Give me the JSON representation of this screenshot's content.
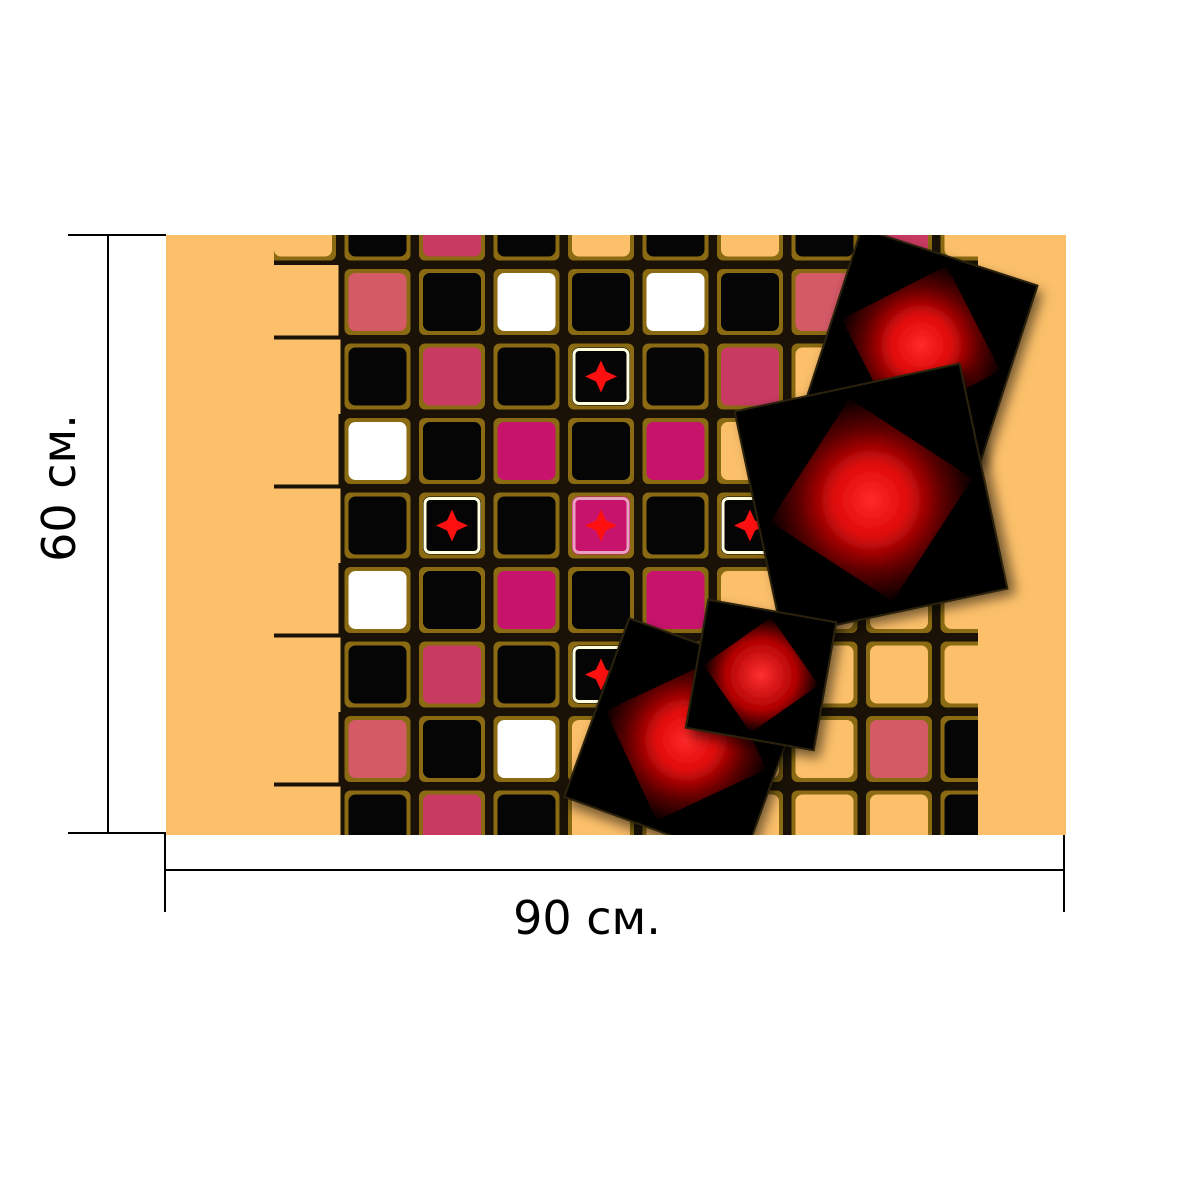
{
  "dimensions": {
    "height_label": "60 см.",
    "width_label": "90 см."
  },
  "artwork": {
    "icon": "abstract-mosaic-pattern",
    "colors": {
      "background": "#FCC06A",
      "grout": "#1a1206",
      "gold_edge": "#8A6A12",
      "black_tile": "#050505",
      "white_tile": "#FFFFFF",
      "rose_tile": "#D45A66",
      "berry_tile": "#C93A62",
      "magenta_tile": "#C8136C",
      "glow": "#FF1010"
    }
  }
}
